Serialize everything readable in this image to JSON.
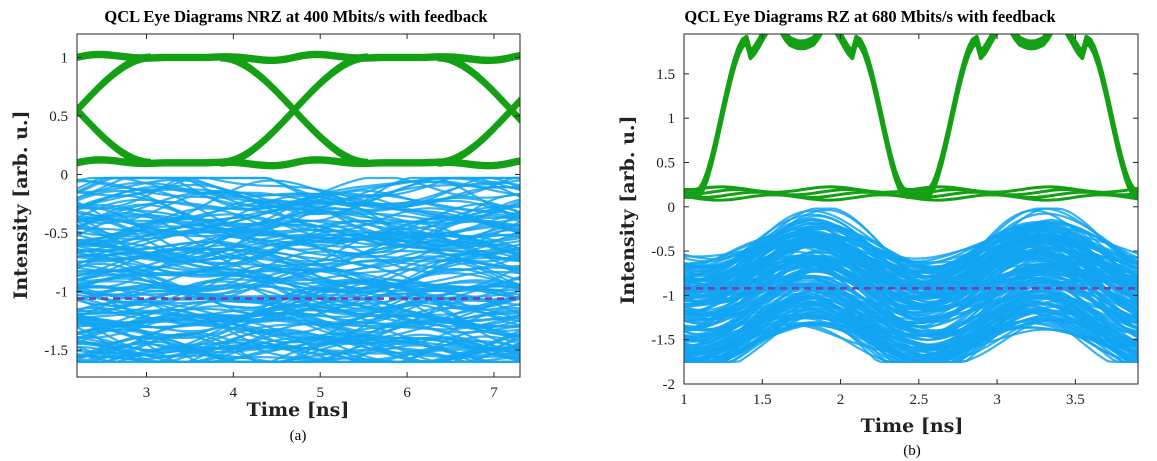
{
  "colors": {
    "upper_traces": "#14a014",
    "lower_traces": "#12a5f2",
    "threshold": "#7a3fa8",
    "axes": "#262626"
  },
  "chart_data": [
    {
      "type": "line",
      "panel": "a",
      "title": "QCL Eye Diagrams NRZ at 400 Mbits/s with feedback",
      "caption": "(a)",
      "xlabel": "Time [ns]",
      "ylabel": "Intensity [arb. u.]",
      "xlim": [
        2.2,
        7.3
      ],
      "ylim": [
        -1.73,
        1.2
      ],
      "xticks": [
        3,
        4,
        5,
        6,
        7
      ],
      "xtick_labels": [
        "3",
        "4",
        "5",
        "6",
        "7"
      ],
      "yticks": [
        1,
        0.5,
        0,
        -0.5,
        -1,
        -1.5
      ],
      "ytick_labels": [
        "1",
        "0.5",
        "0",
        "-0.5",
        "-1",
        "-1.5"
      ],
      "grid": false,
      "bit_period_ns": 2.5,
      "crossing_times_ns": [
        2.2,
        4.7,
        7.2
      ],
      "high_level": 1.0,
      "low_level": 0.1,
      "lower_band": [
        -1.58,
        -0.08
      ],
      "threshold_level": -1.06
    },
    {
      "type": "line",
      "panel": "b",
      "title": "QCL Eye Diagrams RZ at 680 Mbits/s with feedback",
      "caption": "(b)",
      "xlabel": "Time [ns]",
      "ylabel": "Intensity [arb. u.]",
      "xlim": [
        1,
        3.9
      ],
      "ylim": [
        -2,
        1.95
      ],
      "xticks": [
        1,
        1.5,
        2,
        2.5,
        3,
        3.5
      ],
      "xtick_labels": [
        "1",
        "1.5",
        "2",
        "2.5",
        "3",
        "3.5"
      ],
      "yticks": [
        1.5,
        1,
        0.5,
        0,
        -0.5,
        -1,
        -1.5,
        -2
      ],
      "ytick_labels": [
        "1.5",
        "1",
        "0.5",
        "0",
        "-0.5",
        "-1",
        "-1.5",
        "-2"
      ],
      "grid": false,
      "pulse_peak_times_ns": [
        1.75,
        3.22
      ],
      "pulse_peak_level": 1.88,
      "baseline_level": 0.15,
      "lower_band": [
        -1.75,
        -0.02
      ],
      "threshold_level": -0.92
    }
  ]
}
